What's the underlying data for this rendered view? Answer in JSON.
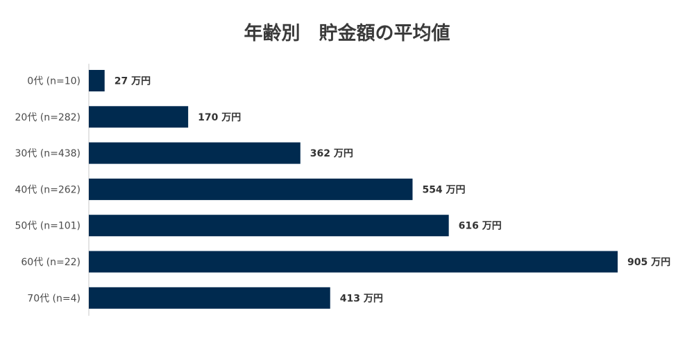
{
  "chart_data": {
    "type": "bar",
    "orientation": "horizontal",
    "title": "年齢別　貯金額の平均値",
    "xlabel": "",
    "ylabel": "",
    "categories": [
      "0代 (n=10)",
      "20代 (n=282)",
      "30代 (n=438)",
      "40代 (n=262)",
      "50代 (n=101)",
      "60代 (n=22)",
      "70代 (n=4)"
    ],
    "values": [
      27,
      170,
      362,
      554,
      616,
      905,
      413
    ],
    "value_unit": "万円",
    "xlim": [
      0,
      905
    ],
    "grid": false,
    "legend": "none",
    "bar_color": "#002a4f"
  }
}
